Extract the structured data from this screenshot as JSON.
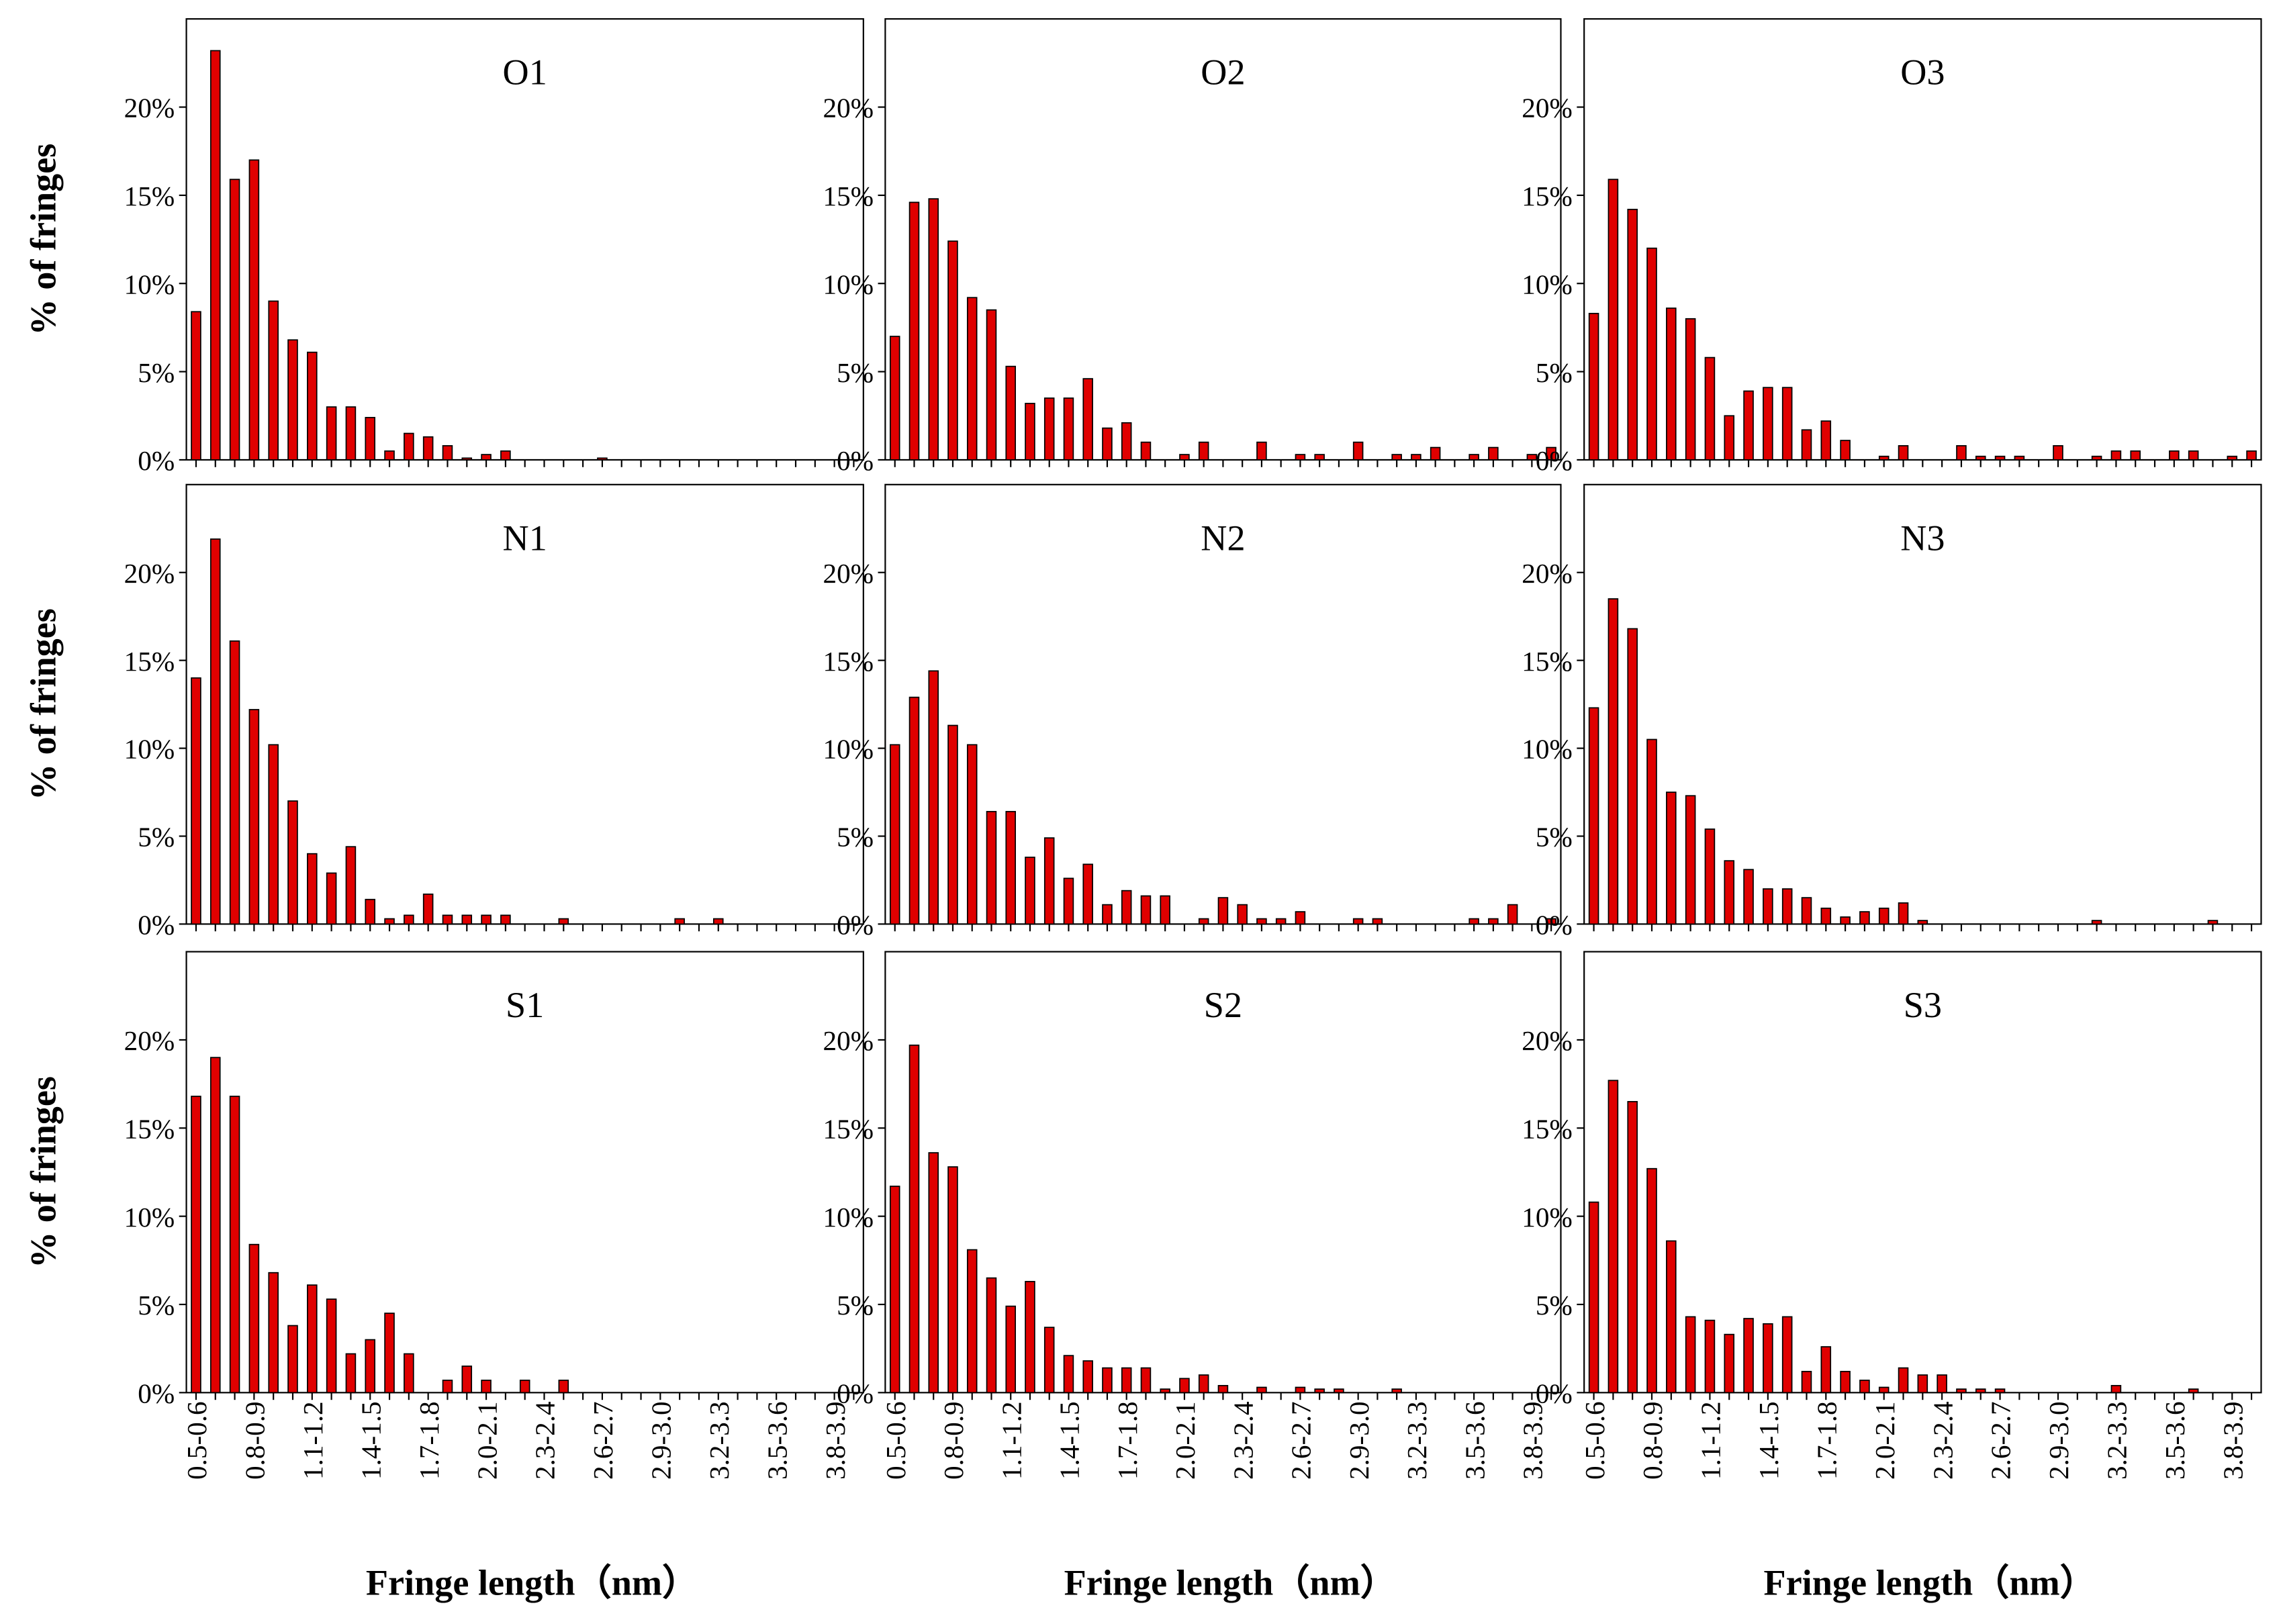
{
  "chart_data": [
    {
      "type": "bar",
      "title": "O1",
      "color": "#e00000",
      "ylim": [
        0,
        25
      ],
      "yticks": [
        {
          "value": 0,
          "label": "0%"
        },
        {
          "value": 5,
          "label": "5%"
        },
        {
          "value": 10,
          "label": "10%"
        },
        {
          "value": 15,
          "label": "15%"
        },
        {
          "value": 20,
          "label": "20%"
        }
      ],
      "y_label": "% of fringes",
      "values": [
        8.4,
        23.2,
        15.9,
        17.0,
        9.0,
        6.8,
        6.1,
        3.0,
        3.0,
        2.4,
        0.5,
        1.5,
        1.3,
        0.8,
        0.1,
        0.3,
        0.5,
        0,
        0,
        0,
        0,
        0.1,
        0,
        0,
        0,
        0,
        0,
        0,
        0,
        0,
        0,
        0,
        0,
        0,
        0
      ]
    },
    {
      "type": "bar",
      "title": "O2",
      "color": "#e00000",
      "ylim": [
        0,
        25
      ],
      "yticks": [
        {
          "value": 0,
          "label": "0%"
        },
        {
          "value": 5,
          "label": "5%"
        },
        {
          "value": 10,
          "label": "10%"
        },
        {
          "value": 15,
          "label": "15%"
        },
        {
          "value": 20,
          "label": "20%"
        }
      ],
      "values": [
        7.0,
        14.6,
        14.8,
        12.4,
        9.2,
        8.5,
        5.3,
        3.2,
        3.5,
        3.5,
        4.6,
        1.8,
        2.1,
        1.0,
        0,
        0.3,
        1.0,
        0,
        0,
        1.0,
        0,
        0.3,
        0.3,
        0,
        1.0,
        0,
        0.3,
        0.3,
        0.7,
        0,
        0.3,
        0.7,
        0,
        0.3,
        0.7
      ]
    },
    {
      "type": "bar",
      "title": "O3",
      "color": "#e00000",
      "ylim": [
        0,
        25
      ],
      "yticks": [
        {
          "value": 0,
          "label": "0%"
        },
        {
          "value": 5,
          "label": "5%"
        },
        {
          "value": 10,
          "label": "10%"
        },
        {
          "value": 15,
          "label": "15%"
        },
        {
          "value": 20,
          "label": "20%"
        }
      ],
      "values": [
        8.3,
        15.9,
        14.2,
        12.0,
        8.6,
        8.0,
        5.8,
        2.5,
        3.9,
        4.1,
        4.1,
        1.7,
        2.2,
        1.1,
        0,
        0.2,
        0.8,
        0,
        0,
        0.8,
        0.2,
        0.2,
        0.2,
        0,
        0.8,
        0,
        0.2,
        0.5,
        0.5,
        0,
        0.5,
        0.5,
        0,
        0.2,
        0.5
      ]
    },
    {
      "type": "bar",
      "title": "N1",
      "color": "#e00000",
      "ylim": [
        0,
        25
      ],
      "yticks": [
        {
          "value": 0,
          "label": "0%"
        },
        {
          "value": 5,
          "label": "5%"
        },
        {
          "value": 10,
          "label": "10%"
        },
        {
          "value": 15,
          "label": "15%"
        },
        {
          "value": 20,
          "label": "20%"
        }
      ],
      "y_label": "% of fringes",
      "values": [
        14.0,
        21.9,
        16.1,
        12.2,
        10.2,
        7.0,
        4.0,
        2.9,
        4.4,
        1.4,
        0.3,
        0.5,
        1.7,
        0.5,
        0.5,
        0.5,
        0.5,
        0,
        0,
        0.3,
        0,
        0,
        0,
        0,
        0,
        0.3,
        0,
        0.3,
        0,
        0,
        0,
        0,
        0,
        0,
        0
      ]
    },
    {
      "type": "bar",
      "title": "N2",
      "color": "#e00000",
      "ylim": [
        0,
        25
      ],
      "yticks": [
        {
          "value": 0,
          "label": "0%"
        },
        {
          "value": 5,
          "label": "5%"
        },
        {
          "value": 10,
          "label": "10%"
        },
        {
          "value": 15,
          "label": "15%"
        },
        {
          "value": 20,
          "label": "20%"
        }
      ],
      "values": [
        10.2,
        12.9,
        14.4,
        11.3,
        10.2,
        6.4,
        6.4,
        3.8,
        4.9,
        2.6,
        3.4,
        1.1,
        1.9,
        1.6,
        1.6,
        0,
        0.3,
        1.5,
        1.1,
        0.3,
        0.3,
        0.7,
        0,
        0,
        0.3,
        0.3,
        0,
        0,
        0,
        0,
        0.3,
        0.3,
        1.1,
        0,
        0.3
      ]
    },
    {
      "type": "bar",
      "title": "N3",
      "color": "#e00000",
      "ylim": [
        0,
        25
      ],
      "yticks": [
        {
          "value": 0,
          "label": "0%"
        },
        {
          "value": 5,
          "label": "5%"
        },
        {
          "value": 10,
          "label": "10%"
        },
        {
          "value": 15,
          "label": "15%"
        },
        {
          "value": 20,
          "label": "20%"
        }
      ],
      "values": [
        12.3,
        18.5,
        16.8,
        10.5,
        7.5,
        7.3,
        5.4,
        3.6,
        3.1,
        2.0,
        2.0,
        1.5,
        0.9,
        0.4,
        0.7,
        0.9,
        1.2,
        0.2,
        0,
        0,
        0,
        0,
        0,
        0,
        0,
        0,
        0.2,
        0,
        0,
        0,
        0,
        0,
        0.2,
        0,
        0
      ]
    },
    {
      "type": "bar",
      "title": "S1",
      "color": "#e00000",
      "ylim": [
        0,
        25
      ],
      "yticks": [
        {
          "value": 0,
          "label": "0%"
        },
        {
          "value": 5,
          "label": "5%"
        },
        {
          "value": 10,
          "label": "10%"
        },
        {
          "value": 15,
          "label": "15%"
        },
        {
          "value": 20,
          "label": "20%"
        }
      ],
      "y_label": "% of fringes",
      "x_label": "Fringe length（nm）",
      "categories": [
        "0.5-0.6",
        null,
        null,
        "0.8-0.9",
        null,
        null,
        "1.1-1.2",
        null,
        null,
        "1.4-1.5",
        null,
        null,
        "1.7-1.8",
        null,
        null,
        "2.0-2.1",
        null,
        null,
        "2.3-2.4",
        null,
        null,
        "2.6-2.7",
        null,
        null,
        "2.9-3.0",
        null,
        null,
        "3.2-3.3",
        null,
        null,
        "3.5-3.6",
        null,
        null,
        "3.8-3.9",
        null
      ],
      "values": [
        16.8,
        19.0,
        16.8,
        8.4,
        6.8,
        3.8,
        6.1,
        5.3,
        2.2,
        3.0,
        4.5,
        2.2,
        0,
        0.7,
        1.5,
        0.7,
        0,
        0.7,
        0,
        0.7,
        0,
        0,
        0,
        0,
        0,
        0,
        0,
        0,
        0,
        0,
        0,
        0,
        0,
        0,
        0
      ]
    },
    {
      "type": "bar",
      "title": "S2",
      "color": "#e00000",
      "ylim": [
        0,
        25
      ],
      "yticks": [
        {
          "value": 0,
          "label": "0%"
        },
        {
          "value": 5,
          "label": "5%"
        },
        {
          "value": 10,
          "label": "10%"
        },
        {
          "value": 15,
          "label": "15%"
        },
        {
          "value": 20,
          "label": "20%"
        }
      ],
      "x_label": "Fringe length（nm）",
      "categories": [
        "0.5-0.6",
        null,
        null,
        "0.8-0.9",
        null,
        null,
        "1.1-1.2",
        null,
        null,
        "1.4-1.5",
        null,
        null,
        "1.7-1.8",
        null,
        null,
        "2.0-2.1",
        null,
        null,
        "2.3-2.4",
        null,
        null,
        "2.6-2.7",
        null,
        null,
        "2.9-3.0",
        null,
        null,
        "3.2-3.3",
        null,
        null,
        "3.5-3.6",
        null,
        null,
        "3.8-3.9",
        null
      ],
      "values": [
        11.7,
        19.7,
        13.6,
        12.8,
        8.1,
        6.5,
        4.9,
        6.3,
        3.7,
        2.1,
        1.8,
        1.4,
        1.4,
        1.4,
        0.2,
        0.8,
        1.0,
        0.4,
        0,
        0.3,
        0,
        0.3,
        0.2,
        0.2,
        0,
        0,
        0.2,
        0,
        0,
        0,
        0,
        0,
        0,
        0,
        0
      ]
    },
    {
      "type": "bar",
      "title": "S3",
      "color": "#e00000",
      "ylim": [
        0,
        25
      ],
      "yticks": [
        {
          "value": 0,
          "label": "0%"
        },
        {
          "value": 5,
          "label": "5%"
        },
        {
          "value": 10,
          "label": "10%"
        },
        {
          "value": 15,
          "label": "15%"
        },
        {
          "value": 20,
          "label": "20%"
        }
      ],
      "x_label": "Fringe length（nm）",
      "categories": [
        "0.5-0.6",
        null,
        null,
        "0.8-0.9",
        null,
        null,
        "1.1-1.2",
        null,
        null,
        "1.4-1.5",
        null,
        null,
        "1.7-1.8",
        null,
        null,
        "2.0-2.1",
        null,
        null,
        "2.3-2.4",
        null,
        null,
        "2.6-2.7",
        null,
        null,
        "2.9-3.0",
        null,
        null,
        "3.2-3.3",
        null,
        null,
        "3.5-3.6",
        null,
        null,
        "3.8-3.9",
        null
      ],
      "values": [
        10.8,
        17.7,
        16.5,
        12.7,
        8.6,
        4.3,
        4.1,
        3.3,
        4.2,
        3.9,
        4.3,
        1.2,
        2.6,
        1.2,
        0.7,
        0.3,
        1.4,
        1.0,
        1.0,
        0.2,
        0.2,
        0.2,
        0,
        0,
        0,
        0,
        0,
        0.4,
        0,
        0,
        0,
        0.2,
        0,
        0,
        0
      ]
    }
  ]
}
